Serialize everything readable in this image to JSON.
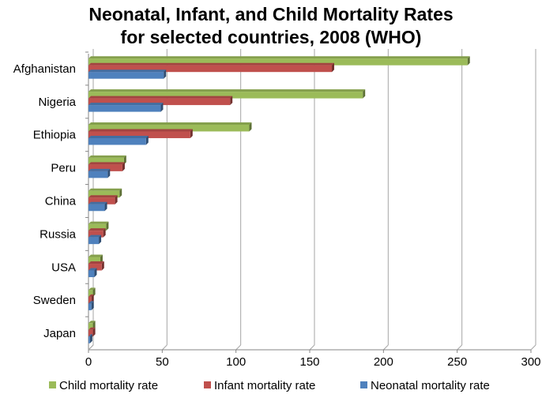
{
  "chart_data": {
    "type": "bar",
    "orientation": "horizontal",
    "title": [
      "Neonatal, Infant, and Child Mortality Rates",
      "for selected countries, 2008 (WHO)"
    ],
    "categories": [
      "Afghanistan",
      "Nigeria",
      "Ethiopia",
      "Peru",
      "China",
      "Russia",
      "USA",
      "Sweden",
      "Japan"
    ],
    "series": [
      {
        "name": "Child mortality rate",
        "color": "#9bbb59",
        "values": [
          257,
          186,
          109,
          24,
          21,
          12,
          8,
          3,
          3
        ]
      },
      {
        "name": "Infant mortality rate",
        "color": "#c0504d",
        "values": [
          165,
          96,
          69,
          23,
          18,
          10,
          9,
          2,
          3
        ]
      },
      {
        "name": "Neonatal mortality rate",
        "color": "#4f81bd",
        "values": [
          51,
          49,
          39,
          13,
          11,
          7,
          4,
          2,
          1
        ]
      }
    ],
    "xlim": [
      0,
      300
    ],
    "xticks": [
      "0",
      "50",
      "100",
      "150",
      "200",
      "250",
      "300"
    ],
    "xlabel": "",
    "ylabel": "",
    "grid": true,
    "legend": "bottom"
  }
}
